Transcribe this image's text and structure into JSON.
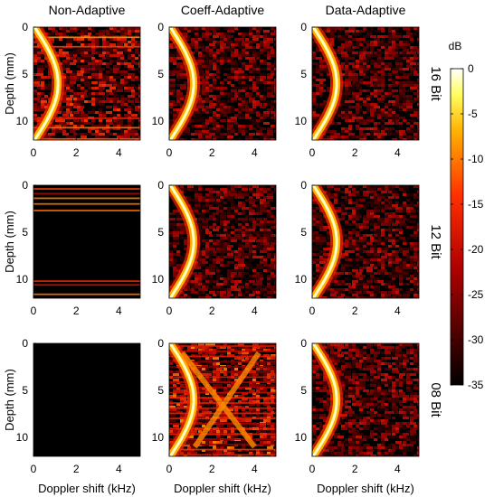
{
  "figure": {
    "colorbar_unit": "dB",
    "colorbar_ticks": [
      0,
      -5,
      -10,
      -15,
      -20,
      -25,
      -30,
      -35
    ]
  },
  "chart_data": {
    "type": "heatmap",
    "colormap": "hot",
    "clim": [
      -35,
      0
    ],
    "columns": [
      "Non-Adaptive",
      "Coeff-Adaptive",
      "Data-Adaptive"
    ],
    "rows": [
      "16 Bit",
      "12 Bit",
      "08 Bit"
    ],
    "xlabel": "Doppler shift (kHz)",
    "ylabel": "Depth (mm)",
    "xlim": [
      0,
      5
    ],
    "ylim": [
      0,
      12
    ],
    "xticks": [
      0,
      2,
      4
    ],
    "yticks": [
      0,
      5,
      10
    ],
    "panels": [
      {
        "row": "16 Bit",
        "column": "Non-Adaptive",
        "arc": "bright",
        "background": "moderate-noise",
        "banding": "thin-lines"
      },
      {
        "row": "16 Bit",
        "column": "Coeff-Adaptive",
        "arc": "bright",
        "background": "low-noise",
        "banding": "none"
      },
      {
        "row": "16 Bit",
        "column": "Data-Adaptive",
        "arc": "bright",
        "background": "low-noise",
        "banding": "none"
      },
      {
        "row": "12 Bit",
        "column": "Non-Adaptive",
        "arc": "absent",
        "background": "black",
        "banding": "bright-lines"
      },
      {
        "row": "12 Bit",
        "column": "Coeff-Adaptive",
        "arc": "bright",
        "background": "low-noise",
        "banding": "none"
      },
      {
        "row": "12 Bit",
        "column": "Data-Adaptive",
        "arc": "bright",
        "background": "low-noise",
        "banding": "none"
      },
      {
        "row": "08 Bit",
        "column": "Non-Adaptive",
        "arc": "absent",
        "background": "black",
        "banding": "none"
      },
      {
        "row": "08 Bit",
        "column": "Coeff-Adaptive",
        "arc": "crossed",
        "background": "high-noise",
        "banding": "strong"
      },
      {
        "row": "08 Bit",
        "column": "Data-Adaptive",
        "arc": "bright",
        "background": "low-noise",
        "banding": "none"
      }
    ]
  }
}
